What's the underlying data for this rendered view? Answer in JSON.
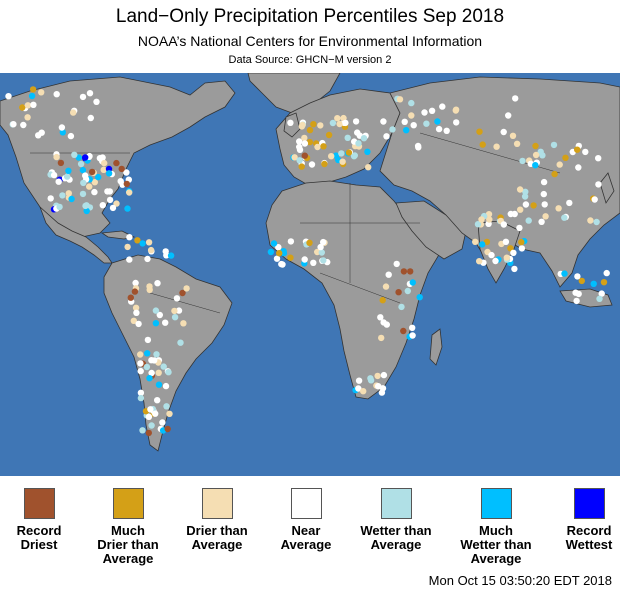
{
  "header": {
    "title": "Land−Only Precipitation Percentiles Sep 2018",
    "subtitle": "NOAA’s National Centers for Environmental Information",
    "source": "Data Source: GHCN−M version 2"
  },
  "map": {
    "ocean_color": "#3f76b5",
    "land_color": "#9b9b9b",
    "border_color": "#333333"
  },
  "legend": [
    {
      "label": "Record\nDriest",
      "color": "#a0522d"
    },
    {
      "label": "Much\nDrier than\nAverage",
      "color": "#d4a017"
    },
    {
      "label": "Drier than\nAverage",
      "color": "#f5deb3"
    },
    {
      "label": "Near\nAverage",
      "color": "#ffffff"
    },
    {
      "label": "Wetter than\nAverage",
      "color": "#b0e0e6"
    },
    {
      "label": "Much\nWetter than\nAverage",
      "color": "#00bfff"
    },
    {
      "label": "Record\nWettest",
      "color": "#0000ff"
    }
  ],
  "footer": {
    "timestamp": "Mon Oct 15 03:50:20 EDT 2018"
  }
}
